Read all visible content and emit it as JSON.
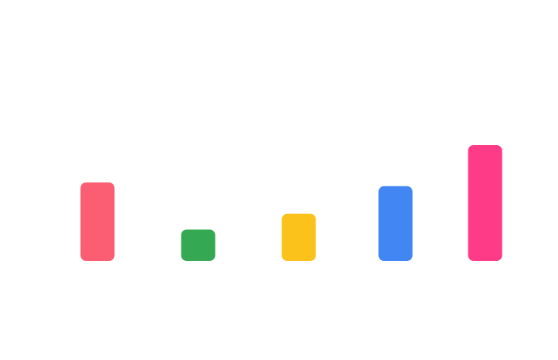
{
  "chart_data": {
    "type": "bar",
    "title": "",
    "xlabel": "",
    "ylabel": "",
    "ylim": [
      0,
      160
    ],
    "grid": false,
    "legend": "none",
    "categories": [
      "",
      "",
      "",
      "",
      ""
    ],
    "values": [
      105,
      42,
      63,
      100,
      155
    ],
    "colors": [
      "#fb5e72",
      "#34a853",
      "#fac21b",
      "#4286f4",
      "#fe3b86"
    ]
  }
}
